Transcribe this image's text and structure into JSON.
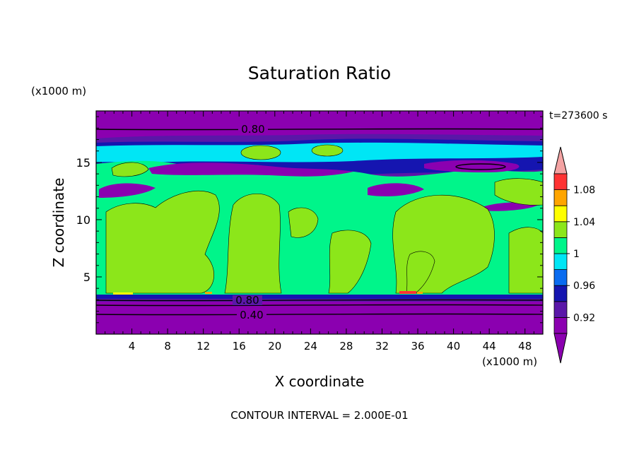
{
  "chart_data": {
    "type": "contour",
    "title": "Saturation Ratio",
    "xlabel": "X coordinate",
    "ylabel": "Z coordinate",
    "x_unit": "(x1000 m)",
    "y_unit": "(x1000 m)",
    "time_label": "t=273600 s",
    "footer": "CONTOUR INTERVAL = 2.000E-01",
    "xlim": [
      0,
      50
    ],
    "ylim": [
      0,
      19.5
    ],
    "x_ticks": [
      4,
      8,
      12,
      16,
      20,
      24,
      28,
      32,
      36,
      40,
      44,
      48
    ],
    "y_ticks": [
      5,
      10,
      15
    ],
    "contour_labels": [
      {
        "text": "0.80",
        "x": 17.5,
        "y": 18.2
      },
      {
        "text": "0.80",
        "x": 17,
        "y": 3.0
      },
      {
        "text": "0.40",
        "x": 17,
        "y": 1.7
      }
    ],
    "colorbar": {
      "tick_labels": [
        "1.08",
        "1.04",
        "1",
        "0.96",
        "0.92"
      ],
      "levels": [
        0.9,
        0.92,
        0.94,
        0.96,
        0.98,
        1.0,
        1.02,
        1.04,
        1.06,
        1.08,
        1.1
      ],
      "colors": [
        "#8b00b0",
        "#5a17a8",
        "#1515b0",
        "#0a6cf0",
        "#00e6f5",
        "#00f58a",
        "#8ce61a",
        "#ffff00",
        "#ffa500",
        "#ff3333",
        "#f4a3a3"
      ],
      "under_color": "#8b00b0",
      "over_color": "#f4a3a3"
    }
  }
}
